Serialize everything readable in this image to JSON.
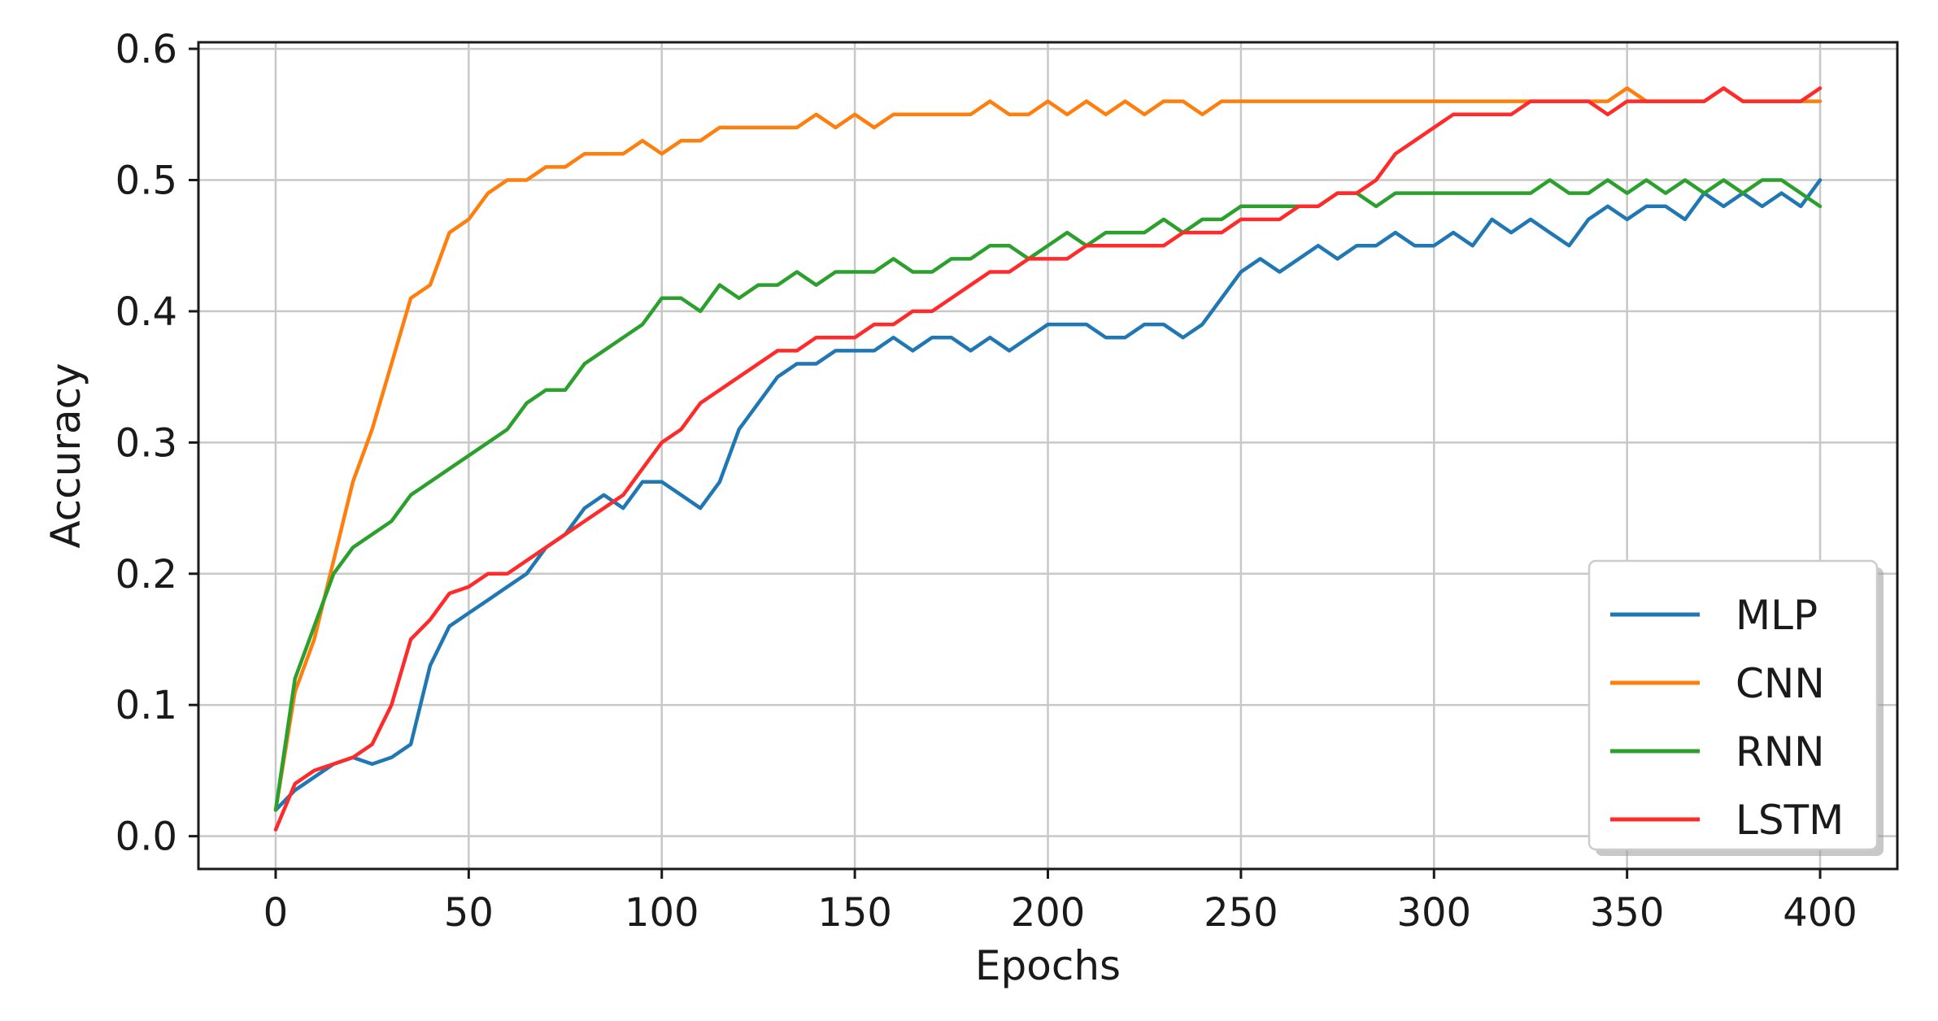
{
  "chart_data": {
    "type": "line",
    "title": "",
    "xlabel": "Epochs",
    "ylabel": "Accuracy",
    "xlim": [
      -20,
      420
    ],
    "ylim": [
      -0.025,
      0.605
    ],
    "xticks": [
      0,
      50,
      100,
      150,
      200,
      250,
      300,
      350,
      400
    ],
    "yticks": [
      0.0,
      0.1,
      0.2,
      0.3,
      0.4,
      0.5,
      0.6
    ],
    "xtick_labels": [
      "0",
      "50",
      "100",
      "150",
      "200",
      "250",
      "300",
      "350",
      "400"
    ],
    "ytick_labels": [
      "0.0",
      "0.1",
      "0.2",
      "0.3",
      "0.4",
      "0.5",
      "0.6"
    ],
    "grid": true,
    "legend_position": "lower-right",
    "series": [
      {
        "name": "MLP",
        "color": "#1f77b4",
        "x": [
          0,
          5,
          10,
          15,
          20,
          25,
          30,
          35,
          40,
          45,
          50,
          55,
          60,
          65,
          70,
          75,
          80,
          85,
          90,
          95,
          100,
          105,
          110,
          115,
          120,
          125,
          130,
          135,
          140,
          145,
          150,
          155,
          160,
          165,
          170,
          175,
          180,
          185,
          190,
          195,
          200,
          205,
          210,
          215,
          220,
          225,
          230,
          235,
          240,
          245,
          250,
          255,
          260,
          265,
          270,
          275,
          280,
          285,
          290,
          295,
          300,
          305,
          310,
          315,
          320,
          325,
          330,
          335,
          340,
          345,
          350,
          355,
          360,
          365,
          370,
          375,
          380,
          385,
          390,
          395,
          400
        ],
        "y": [
          0.02,
          0.035,
          0.045,
          0.055,
          0.06,
          0.055,
          0.06,
          0.07,
          0.13,
          0.16,
          0.17,
          0.18,
          0.19,
          0.2,
          0.22,
          0.23,
          0.25,
          0.26,
          0.25,
          0.27,
          0.27,
          0.26,
          0.25,
          0.27,
          0.31,
          0.33,
          0.35,
          0.36,
          0.36,
          0.37,
          0.37,
          0.37,
          0.38,
          0.37,
          0.38,
          0.38,
          0.37,
          0.38,
          0.37,
          0.38,
          0.39,
          0.39,
          0.39,
          0.38,
          0.38,
          0.39,
          0.39,
          0.38,
          0.39,
          0.41,
          0.43,
          0.44,
          0.43,
          0.44,
          0.45,
          0.44,
          0.45,
          0.45,
          0.46,
          0.45,
          0.45,
          0.46,
          0.45,
          0.47,
          0.46,
          0.47,
          0.46,
          0.45,
          0.47,
          0.48,
          0.47,
          0.48,
          0.48,
          0.47,
          0.49,
          0.48,
          0.49,
          0.48,
          0.49,
          0.48,
          0.5
        ]
      },
      {
        "name": "CNN",
        "color": "#ff7f0e",
        "x": [
          0,
          5,
          10,
          15,
          20,
          25,
          30,
          35,
          40,
          45,
          50,
          55,
          60,
          65,
          70,
          75,
          80,
          85,
          90,
          95,
          100,
          105,
          110,
          115,
          120,
          125,
          130,
          135,
          140,
          145,
          150,
          155,
          160,
          165,
          170,
          175,
          180,
          185,
          190,
          195,
          200,
          205,
          210,
          215,
          220,
          225,
          230,
          235,
          240,
          245,
          250,
          255,
          260,
          265,
          270,
          275,
          280,
          285,
          290,
          295,
          300,
          305,
          310,
          315,
          320,
          325,
          330,
          335,
          340,
          345,
          350,
          355,
          360,
          365,
          370,
          375,
          380,
          385,
          390,
          395,
          400
        ],
        "y": [
          0.02,
          0.11,
          0.15,
          0.21,
          0.27,
          0.31,
          0.36,
          0.41,
          0.42,
          0.46,
          0.47,
          0.49,
          0.5,
          0.5,
          0.51,
          0.51,
          0.52,
          0.52,
          0.52,
          0.53,
          0.52,
          0.53,
          0.53,
          0.54,
          0.54,
          0.54,
          0.54,
          0.54,
          0.55,
          0.54,
          0.55,
          0.54,
          0.55,
          0.55,
          0.55,
          0.55,
          0.55,
          0.56,
          0.55,
          0.55,
          0.56,
          0.55,
          0.56,
          0.55,
          0.56,
          0.55,
          0.56,
          0.56,
          0.55,
          0.56,
          0.56,
          0.56,
          0.56,
          0.56,
          0.56,
          0.56,
          0.56,
          0.56,
          0.56,
          0.56,
          0.56,
          0.56,
          0.56,
          0.56,
          0.56,
          0.56,
          0.56,
          0.56,
          0.56,
          0.56,
          0.57,
          0.56,
          0.56,
          0.56,
          0.56,
          0.57,
          0.56,
          0.56,
          0.56,
          0.56,
          0.56
        ]
      },
      {
        "name": "RNN",
        "color": "#2ca02c",
        "x": [
          0,
          5,
          10,
          15,
          20,
          25,
          30,
          35,
          40,
          45,
          50,
          55,
          60,
          65,
          70,
          75,
          80,
          85,
          90,
          95,
          100,
          105,
          110,
          115,
          120,
          125,
          130,
          135,
          140,
          145,
          150,
          155,
          160,
          165,
          170,
          175,
          180,
          185,
          190,
          195,
          200,
          205,
          210,
          215,
          220,
          225,
          230,
          235,
          240,
          245,
          250,
          255,
          260,
          265,
          270,
          275,
          280,
          285,
          290,
          295,
          300,
          305,
          310,
          315,
          320,
          325,
          330,
          335,
          340,
          345,
          350,
          355,
          360,
          365,
          370,
          375,
          380,
          385,
          390,
          395,
          400
        ],
        "y": [
          0.02,
          0.12,
          0.16,
          0.2,
          0.22,
          0.23,
          0.24,
          0.26,
          0.27,
          0.28,
          0.29,
          0.3,
          0.31,
          0.33,
          0.34,
          0.34,
          0.36,
          0.37,
          0.38,
          0.39,
          0.41,
          0.41,
          0.4,
          0.42,
          0.41,
          0.42,
          0.42,
          0.43,
          0.42,
          0.43,
          0.43,
          0.43,
          0.44,
          0.43,
          0.43,
          0.44,
          0.44,
          0.45,
          0.45,
          0.44,
          0.45,
          0.46,
          0.45,
          0.46,
          0.46,
          0.46,
          0.47,
          0.46,
          0.47,
          0.47,
          0.48,
          0.48,
          0.48,
          0.48,
          0.48,
          0.49,
          0.49,
          0.48,
          0.49,
          0.49,
          0.49,
          0.49,
          0.49,
          0.49,
          0.49,
          0.49,
          0.5,
          0.49,
          0.49,
          0.5,
          0.49,
          0.5,
          0.49,
          0.5,
          0.49,
          0.5,
          0.49,
          0.5,
          0.5,
          0.49,
          0.48
        ]
      },
      {
        "name": "LSTM",
        "color": "#ff2a2a",
        "x": [
          0,
          5,
          10,
          15,
          20,
          25,
          30,
          35,
          40,
          45,
          50,
          55,
          60,
          65,
          70,
          75,
          80,
          85,
          90,
          95,
          100,
          105,
          110,
          115,
          120,
          125,
          130,
          135,
          140,
          145,
          150,
          155,
          160,
          165,
          170,
          175,
          180,
          185,
          190,
          195,
          200,
          205,
          210,
          215,
          220,
          225,
          230,
          235,
          240,
          245,
          250,
          255,
          260,
          265,
          270,
          275,
          280,
          285,
          290,
          295,
          300,
          305,
          310,
          315,
          320,
          325,
          330,
          335,
          340,
          345,
          350,
          355,
          360,
          365,
          370,
          375,
          380,
          385,
          390,
          395,
          400
        ],
        "y": [
          0.005,
          0.04,
          0.05,
          0.055,
          0.06,
          0.07,
          0.1,
          0.15,
          0.165,
          0.185,
          0.19,
          0.2,
          0.2,
          0.21,
          0.22,
          0.23,
          0.24,
          0.25,
          0.26,
          0.28,
          0.3,
          0.31,
          0.33,
          0.34,
          0.35,
          0.36,
          0.37,
          0.37,
          0.38,
          0.38,
          0.38,
          0.39,
          0.39,
          0.4,
          0.4,
          0.41,
          0.42,
          0.43,
          0.43,
          0.44,
          0.44,
          0.44,
          0.45,
          0.45,
          0.45,
          0.45,
          0.45,
          0.46,
          0.46,
          0.46,
          0.47,
          0.47,
          0.47,
          0.48,
          0.48,
          0.49,
          0.49,
          0.5,
          0.52,
          0.53,
          0.54,
          0.55,
          0.55,
          0.55,
          0.55,
          0.56,
          0.56,
          0.56,
          0.56,
          0.55,
          0.56,
          0.56,
          0.56,
          0.56,
          0.56,
          0.57,
          0.56,
          0.56,
          0.56,
          0.56,
          0.57
        ]
      }
    ]
  }
}
